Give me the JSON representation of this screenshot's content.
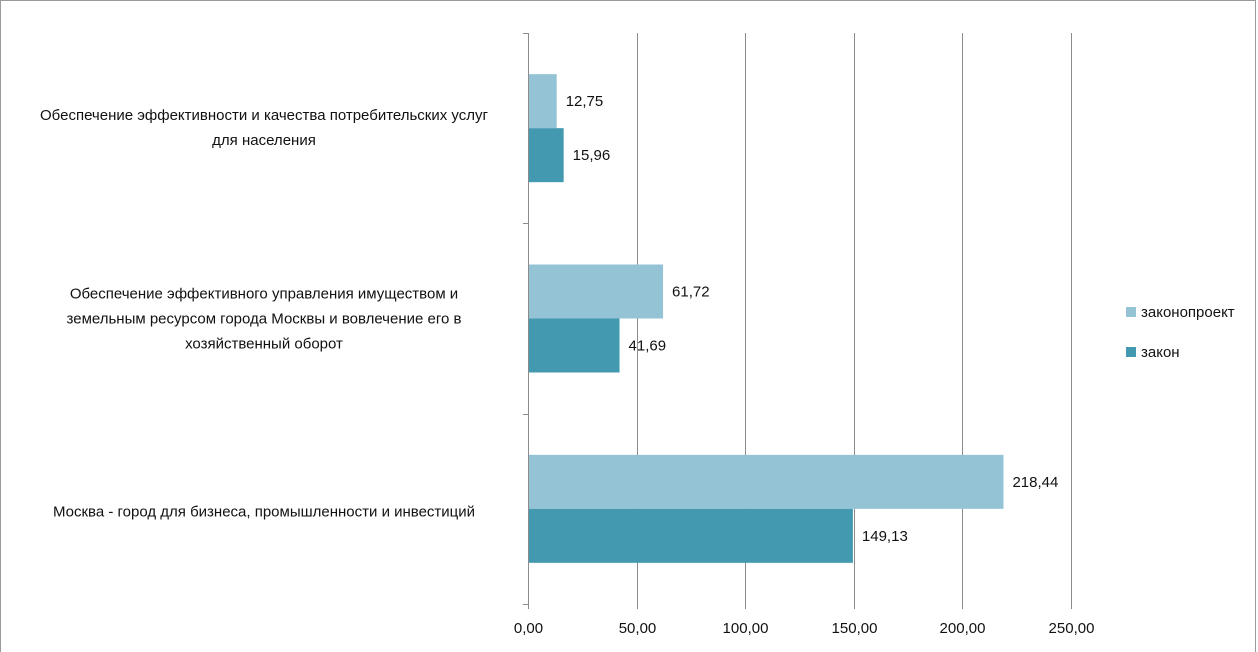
{
  "chart_data": {
    "type": "bar",
    "orientation": "horizontal",
    "title": "",
    "xlabel": "",
    "ylabel": "",
    "xlim": [
      0,
      250
    ],
    "x_ticks": [
      "0,00",
      "50,00",
      "100,00",
      "150,00",
      "200,00",
      "250,00"
    ],
    "grid": "vertical",
    "legend_position": "right",
    "categories": [
      "Обеспечение эффективности и качества потребительских услуг для населения",
      "Обеспечение эффективного управления имуществом и земельным ресурсом города Москвы и вовлечение его в хозяйственный оборот",
      "Москва - город для бизнеса, промышленности и инвестиций"
    ],
    "series": [
      {
        "name": "законопроект",
        "color": "#93c3d4",
        "values": [
          12.75,
          61.72,
          218.44
        ],
        "labels": [
          "12,75",
          "61,72",
          "218,44"
        ]
      },
      {
        "name": "закон",
        "color": "#4399b0",
        "values": [
          15.96,
          41.69,
          149.13
        ],
        "labels": [
          "15,96",
          "41,69",
          "149,13"
        ]
      }
    ]
  },
  "labels": {
    "cat0_line1": "Обеспечение эффективности и качества потребительских услуг",
    "cat0_line2": "для населения",
    "cat1_line1": "Обеспечение эффективного управления имуществом и",
    "cat1_line2": "земельным ресурсом города Москвы и вовлечение его в",
    "cat1_line3": "хозяйственный оборот",
    "cat2_line1": "Москва - город для бизнеса, промышленности и инвестиций"
  }
}
